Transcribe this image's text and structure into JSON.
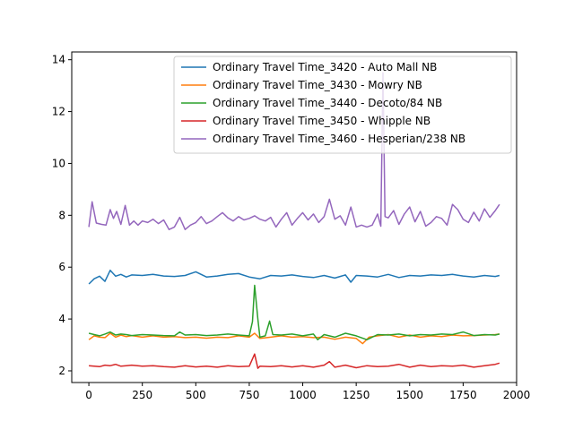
{
  "chart_data": {
    "type": "line",
    "title": "",
    "xlabel": "",
    "ylabel": "",
    "xlim": [
      -80,
      2000
    ],
    "ylim": [
      1.55,
      14.3
    ],
    "x_ticks": [
      0,
      250,
      500,
      750,
      1000,
      1250,
      1500,
      1750,
      2000
    ],
    "y_ticks": [
      2,
      4,
      6,
      8,
      10,
      12,
      14
    ],
    "grid": false,
    "legend_position": "top-right",
    "series": [
      {
        "name": "Ordinary Travel Time_3420 - Auto Mall NB",
        "color": "#1f77b4",
        "x": [
          0,
          25,
          50,
          75,
          100,
          125,
          150,
          175,
          200,
          250,
          300,
          350,
          400,
          450,
          500,
          550,
          600,
          650,
          700,
          750,
          800,
          850,
          900,
          950,
          1000,
          1050,
          1100,
          1150,
          1200,
          1225,
          1250,
          1300,
          1350,
          1400,
          1450,
          1500,
          1550,
          1600,
          1650,
          1700,
          1750,
          1800,
          1850,
          1900,
          1920
        ],
        "y": [
          5.35,
          5.55,
          5.65,
          5.45,
          5.88,
          5.65,
          5.72,
          5.62,
          5.7,
          5.68,
          5.72,
          5.66,
          5.64,
          5.68,
          5.82,
          5.62,
          5.66,
          5.72,
          5.75,
          5.62,
          5.55,
          5.68,
          5.66,
          5.7,
          5.64,
          5.6,
          5.68,
          5.58,
          5.7,
          5.42,
          5.68,
          5.66,
          5.62,
          5.72,
          5.6,
          5.68,
          5.66,
          5.7,
          5.68,
          5.72,
          5.66,
          5.62,
          5.68,
          5.64,
          5.68
        ]
      },
      {
        "name": "Ordinary Travel Time_3430 - Mowry NB",
        "color": "#ff7f0e",
        "x": [
          0,
          25,
          50,
          75,
          100,
          125,
          150,
          175,
          200,
          250,
          300,
          350,
          400,
          450,
          500,
          550,
          600,
          650,
          700,
          750,
          775,
          800,
          850,
          900,
          950,
          1000,
          1050,
          1100,
          1150,
          1200,
          1250,
          1280,
          1310,
          1350,
          1400,
          1450,
          1500,
          1550,
          1600,
          1650,
          1700,
          1750,
          1800,
          1850,
          1900,
          1920
        ],
        "y": [
          3.2,
          3.35,
          3.3,
          3.28,
          3.45,
          3.3,
          3.38,
          3.32,
          3.36,
          3.3,
          3.35,
          3.3,
          3.32,
          3.28,
          3.3,
          3.26,
          3.3,
          3.28,
          3.35,
          3.3,
          3.45,
          3.25,
          3.3,
          3.35,
          3.3,
          3.32,
          3.28,
          3.3,
          3.22,
          3.3,
          3.25,
          3.05,
          3.3,
          3.35,
          3.4,
          3.3,
          3.38,
          3.3,
          3.35,
          3.32,
          3.38,
          3.35,
          3.36,
          3.38,
          3.4,
          3.42
        ]
      },
      {
        "name": "Ordinary Travel Time_3440 - Decoto/84 NB",
        "color": "#2ca02c",
        "x": [
          0,
          25,
          50,
          75,
          100,
          125,
          150,
          175,
          200,
          250,
          300,
          350,
          400,
          425,
          450,
          500,
          550,
          600,
          650,
          700,
          750,
          765,
          775,
          790,
          800,
          825,
          845,
          860,
          900,
          950,
          1000,
          1050,
          1070,
          1100,
          1150,
          1200,
          1250,
          1300,
          1350,
          1400,
          1450,
          1500,
          1550,
          1600,
          1650,
          1700,
          1750,
          1800,
          1850,
          1900,
          1920
        ],
        "y": [
          3.45,
          3.4,
          3.35,
          3.42,
          3.5,
          3.38,
          3.42,
          3.4,
          3.36,
          3.4,
          3.38,
          3.36,
          3.35,
          3.5,
          3.38,
          3.4,
          3.36,
          3.38,
          3.42,
          3.38,
          3.35,
          3.9,
          5.3,
          4.0,
          3.3,
          3.35,
          3.92,
          3.4,
          3.38,
          3.42,
          3.35,
          3.42,
          3.2,
          3.4,
          3.3,
          3.45,
          3.35,
          3.2,
          3.4,
          3.38,
          3.42,
          3.35,
          3.4,
          3.38,
          3.42,
          3.4,
          3.5,
          3.36,
          3.4,
          3.38,
          3.42
        ]
      },
      {
        "name": "Ordinary Travel Time_3450 - Whipple NB",
        "color": "#d62728",
        "x": [
          0,
          25,
          50,
          75,
          100,
          125,
          150,
          175,
          200,
          250,
          300,
          350,
          400,
          450,
          500,
          550,
          600,
          650,
          700,
          750,
          775,
          790,
          800,
          850,
          900,
          950,
          1000,
          1050,
          1100,
          1125,
          1150,
          1200,
          1250,
          1300,
          1350,
          1400,
          1450,
          1500,
          1550,
          1600,
          1650,
          1700,
          1750,
          1800,
          1850,
          1900,
          1920
        ],
        "y": [
          2.2,
          2.18,
          2.16,
          2.22,
          2.2,
          2.25,
          2.18,
          2.2,
          2.22,
          2.18,
          2.2,
          2.16,
          2.14,
          2.2,
          2.15,
          2.18,
          2.14,
          2.2,
          2.16,
          2.18,
          2.65,
          2.1,
          2.18,
          2.16,
          2.2,
          2.15,
          2.2,
          2.14,
          2.22,
          2.36,
          2.14,
          2.22,
          2.12,
          2.2,
          2.16,
          2.18,
          2.25,
          2.14,
          2.22,
          2.16,
          2.2,
          2.18,
          2.22,
          2.14,
          2.2,
          2.25,
          2.3
        ]
      },
      {
        "name": "Ordinary Travel Time_3460 - Hesperian/238 NB",
        "color": "#9467bd",
        "x": [
          0,
          15,
          35,
          60,
          80,
          100,
          115,
          130,
          150,
          170,
          190,
          210,
          230,
          250,
          275,
          300,
          325,
          350,
          375,
          400,
          425,
          450,
          475,
          500,
          525,
          550,
          575,
          600,
          625,
          650,
          675,
          700,
          725,
          750,
          775,
          800,
          825,
          850,
          875,
          900,
          925,
          950,
          975,
          1000,
          1025,
          1050,
          1075,
          1100,
          1125,
          1150,
          1175,
          1200,
          1225,
          1250,
          1275,
          1300,
          1325,
          1350,
          1365,
          1375,
          1385,
          1400,
          1425,
          1450,
          1475,
          1500,
          1525,
          1550,
          1575,
          1600,
          1625,
          1650,
          1675,
          1700,
          1725,
          1750,
          1775,
          1800,
          1825,
          1850,
          1875,
          1900,
          1920
        ],
        "y": [
          7.55,
          8.52,
          7.7,
          7.65,
          7.62,
          8.22,
          7.88,
          8.15,
          7.65,
          8.38,
          7.62,
          7.78,
          7.62,
          7.78,
          7.72,
          7.85,
          7.68,
          7.82,
          7.45,
          7.55,
          7.92,
          7.45,
          7.62,
          7.72,
          7.95,
          7.68,
          7.78,
          7.95,
          8.1,
          7.9,
          7.78,
          7.95,
          7.82,
          7.88,
          7.98,
          7.85,
          7.78,
          7.92,
          7.55,
          7.85,
          8.1,
          7.62,
          7.88,
          8.1,
          7.82,
          8.05,
          7.72,
          7.95,
          8.62,
          7.85,
          7.98,
          7.62,
          8.32,
          7.55,
          7.62,
          7.55,
          7.62,
          8.05,
          7.58,
          13.5,
          7.95,
          7.9,
          8.18,
          7.65,
          8.05,
          8.32,
          7.75,
          8.15,
          7.58,
          7.72,
          7.95,
          7.88,
          7.62,
          8.42,
          8.22,
          7.85,
          7.72,
          8.12,
          7.78,
          8.25,
          7.92,
          8.18,
          8.42
        ]
      }
    ]
  }
}
